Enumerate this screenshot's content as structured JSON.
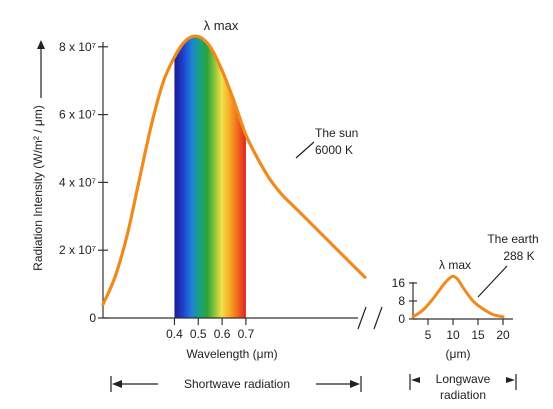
{
  "colors": {
    "curve": "#f08a1c",
    "axis": "#333333",
    "text": "#222222",
    "spectrum": [
      "#1b1c8e",
      "#1f3fd0",
      "#1f7fd8",
      "#17a37a",
      "#2aa33a",
      "#8cc43a",
      "#f0e24a",
      "#f7b227",
      "#f0721c",
      "#e32222"
    ]
  },
  "chart_data": [
    {
      "type": "line",
      "panel": "shortwave",
      "ylabel": "Radiation Intensity (W/m² / μm)",
      "xlabel": "Wavelength (μm)",
      "y_ticks": [
        "8 x 10⁷",
        "6 x 10⁷",
        "4 x 10⁷",
        "2 x 10⁷",
        "0"
      ],
      "y_tick_values": [
        80000000,
        60000000,
        40000000,
        20000000,
        0
      ],
      "x_ticks": [
        "0.4",
        "0.5",
        "0.6",
        "0.7"
      ],
      "x_tick_values": [
        0.4,
        0.5,
        0.6,
        0.7
      ],
      "xlim": [
        0.1,
        1.2
      ],
      "ylim": [
        0,
        82000000
      ],
      "visible_band": [
        0.4,
        0.7
      ],
      "series": [
        {
          "name": "The sun",
          "label_lines": [
            "The sun",
            "6000 K"
          ],
          "x": [
            0.1,
            0.15,
            0.2,
            0.25,
            0.3,
            0.35,
            0.4,
            0.45,
            0.5,
            0.55,
            0.6,
            0.65,
            0.7,
            0.75,
            0.8,
            0.85,
            0.9,
            0.95,
            1.0,
            1.05,
            1.1,
            1.15,
            1.2
          ],
          "y": [
            4000000,
            12000000,
            24000000,
            40000000,
            56000000,
            69000000,
            77000000,
            82000000,
            83000000,
            80000000,
            73000000,
            64000000,
            54000000,
            47000000,
            41000000,
            36500000,
            33000000,
            29500000,
            26000000,
            22500000,
            19000000,
            15500000,
            12000000
          ]
        }
      ],
      "annotations": [
        "λ max"
      ],
      "range_label": "Shortwave radiation"
    },
    {
      "type": "line",
      "panel": "longwave",
      "xlabel": "(μm)",
      "y_ticks": [
        "16",
        "8",
        "0"
      ],
      "y_tick_values": [
        16,
        8,
        0
      ],
      "x_ticks": [
        "5",
        "10",
        "15",
        "20"
      ],
      "x_tick_values": [
        5,
        10,
        15,
        20
      ],
      "xlim": [
        1,
        21
      ],
      "ylim": [
        0,
        20
      ],
      "series": [
        {
          "name": "The earth",
          "label_lines": [
            "The earth",
            "288 K"
          ],
          "x": [
            2,
            4,
            6,
            8,
            9,
            10,
            11,
            12,
            14,
            16,
            18,
            20
          ],
          "y": [
            1,
            4,
            9,
            15,
            17.5,
            19,
            17.5,
            14,
            8,
            4.5,
            2,
            1
          ]
        }
      ],
      "annotations": [
        "λ max"
      ],
      "range_label_lines": [
        "Longwave",
        "radiation"
      ]
    }
  ]
}
